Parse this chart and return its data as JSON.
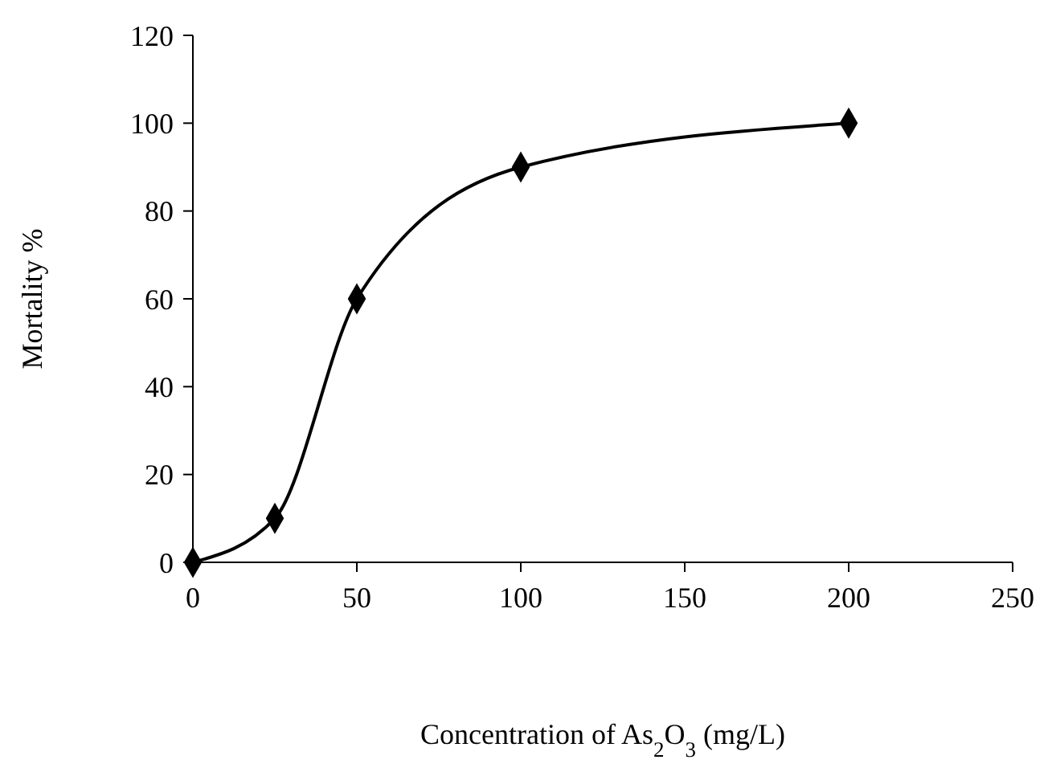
{
  "chart_data": {
    "type": "line",
    "xlabel": "Concentration of As$_{2}$O$_{3}$ (mg/L)",
    "ylabel": "Mortality %",
    "x": [
      0,
      25,
      50,
      100,
      200
    ],
    "series": [
      {
        "color": "#000000",
        "values": [
          0,
          10,
          60,
          90,
          100
        ]
      }
    ],
    "xlim": [
      0,
      250
    ],
    "xticks": [
      0,
      50,
      100,
      150,
      200,
      250
    ],
    "ylim": [
      0,
      120
    ],
    "yticks": [
      0,
      20,
      40,
      60,
      80,
      100,
      120
    ],
    "marker": "diamond",
    "line_style": "solid",
    "grid": false
  }
}
